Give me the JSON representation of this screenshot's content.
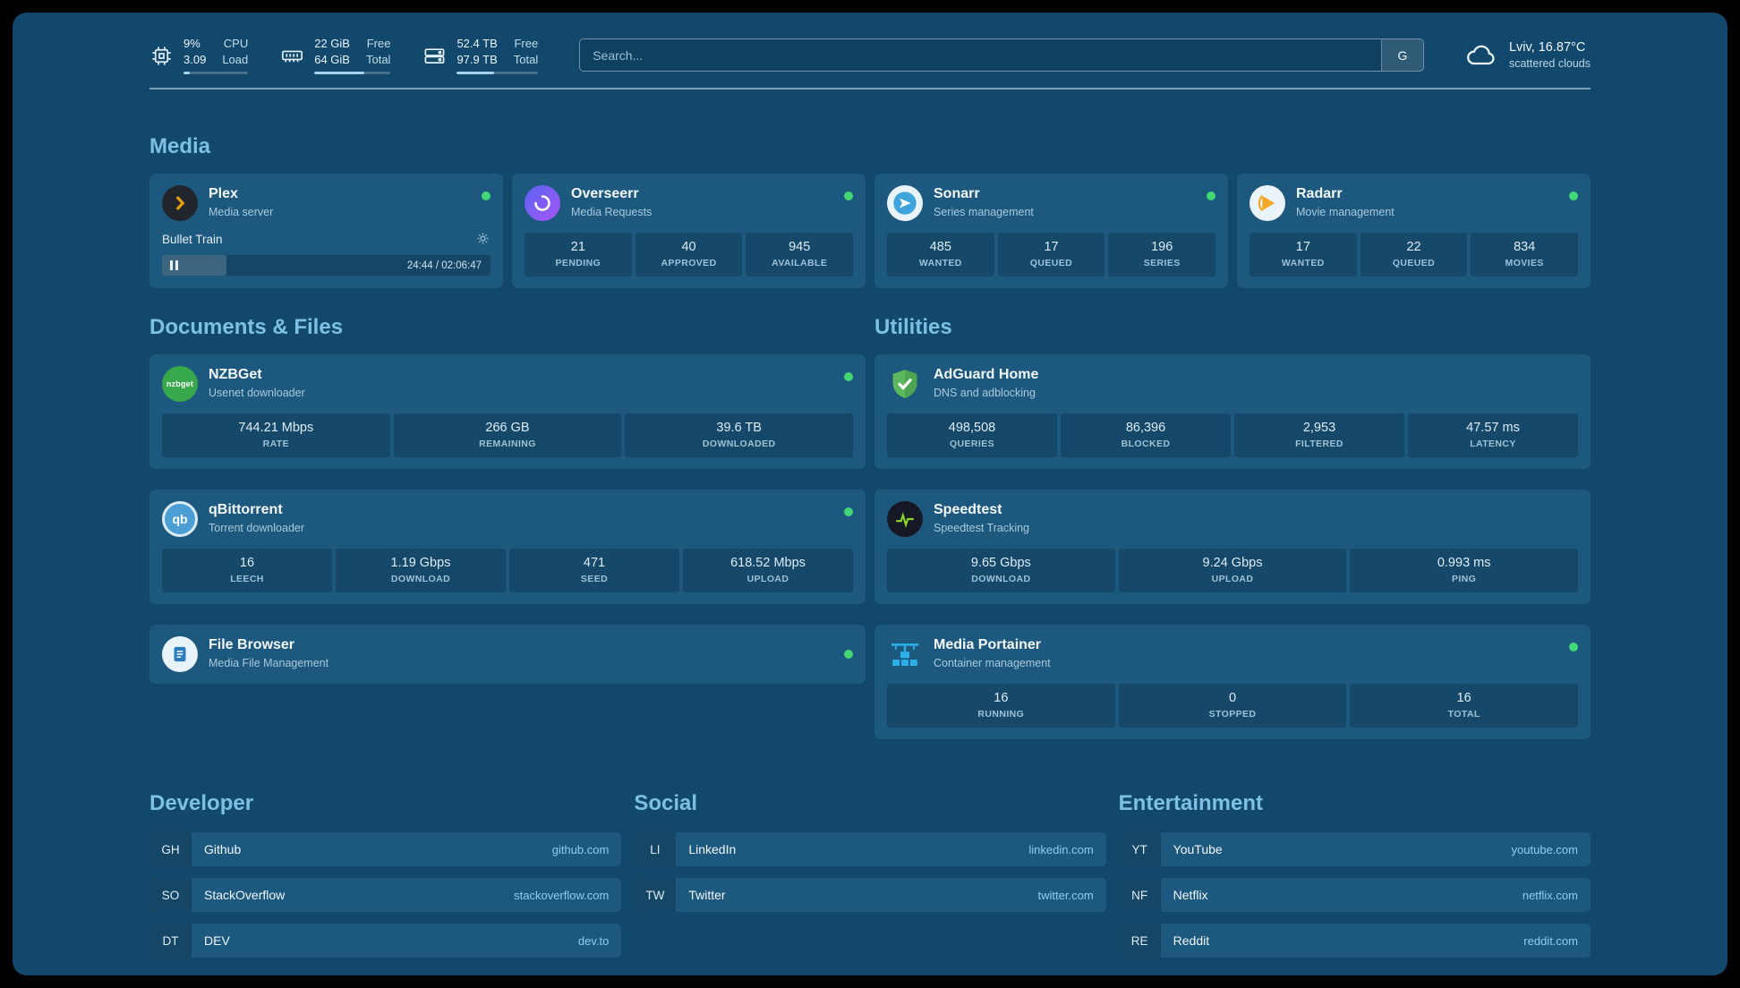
{
  "colors": {
    "page_bg": "#11486b",
    "card_bg": "#1d587e",
    "accent_text": "#7cc1e4",
    "status_online": "#43d675",
    "link_text": "#8ecdef"
  },
  "header": {
    "stats": [
      {
        "name": "cpu",
        "line1": "9%",
        "line2": "3.09",
        "label1": "CPU",
        "label2": "Load",
        "progress": 9
      },
      {
        "name": "memory",
        "line1": "22 GiB",
        "line2": "64 GiB",
        "label1": "Free",
        "label2": "Total",
        "progress": 66
      },
      {
        "name": "disk",
        "line1": "52.4 TB",
        "line2": "97.9 TB",
        "label1": "Free",
        "label2": "Total",
        "progress": 46
      }
    ],
    "search": {
      "placeholder": "Search...",
      "provider_label": "G"
    },
    "weather": {
      "location": "Lviv, 16.87°C",
      "condition": "scattered clouds"
    }
  },
  "sections": {
    "media": {
      "title": "Media"
    },
    "documents": {
      "title": "Documents & Files"
    },
    "utilities": {
      "title": "Utilities"
    }
  },
  "services": {
    "plex": {
      "name": "Plex",
      "desc": "Media server",
      "now_playing": "Bullet Train",
      "time": "24:44 / 02:06:47",
      "progress": 19.5
    },
    "overseerr": {
      "name": "Overseerr",
      "desc": "Media Requests",
      "stats": [
        {
          "value": "21",
          "label": "PENDING"
        },
        {
          "value": "40",
          "label": "APPROVED"
        },
        {
          "value": "945",
          "label": "AVAILABLE"
        }
      ]
    },
    "sonarr": {
      "name": "Sonarr",
      "desc": "Series management",
      "stats": [
        {
          "value": "485",
          "label": "WANTED"
        },
        {
          "value": "17",
          "label": "QUEUED"
        },
        {
          "value": "196",
          "label": "SERIES"
        }
      ]
    },
    "radarr": {
      "name": "Radarr",
      "desc": "Movie management",
      "stats": [
        {
          "value": "17",
          "label": "WANTED"
        },
        {
          "value": "22",
          "label": "QUEUED"
        },
        {
          "value": "834",
          "label": "MOVIES"
        }
      ]
    },
    "nzbget": {
      "name": "NZBGet",
      "desc": "Usenet downloader",
      "stats": [
        {
          "value": "744.21 Mbps",
          "label": "RATE"
        },
        {
          "value": "266 GB",
          "label": "REMAINING"
        },
        {
          "value": "39.6 TB",
          "label": "DOWNLOADED"
        }
      ]
    },
    "qbittorrent": {
      "name": "qBittorrent",
      "desc": "Torrent downloader",
      "stats": [
        {
          "value": "16",
          "label": "LEECH"
        },
        {
          "value": "1.19 Gbps",
          "label": "DOWNLOAD"
        },
        {
          "value": "471",
          "label": "SEED"
        },
        {
          "value": "618.52 Mbps",
          "label": "UPLOAD"
        }
      ]
    },
    "filebrowser": {
      "name": "File Browser",
      "desc": "Media File Management"
    },
    "adguard": {
      "name": "AdGuard Home",
      "desc": "DNS and adblocking",
      "stats": [
        {
          "value": "498,508",
          "label": "QUERIES"
        },
        {
          "value": "86,396",
          "label": "BLOCKED"
        },
        {
          "value": "2,953",
          "label": "FILTERED"
        },
        {
          "value": "47.57 ms",
          "label": "LATENCY"
        }
      ]
    },
    "speedtest": {
      "name": "Speedtest",
      "desc": "Speedtest Tracking",
      "stats": [
        {
          "value": "9.65 Gbps",
          "label": "DOWNLOAD"
        },
        {
          "value": "9.24 Gbps",
          "label": "UPLOAD"
        },
        {
          "value": "0.993 ms",
          "label": "PING"
        }
      ]
    },
    "portainer": {
      "name": "Media Portainer",
      "desc": "Container management",
      "stats": [
        {
          "value": "16",
          "label": "RUNNING"
        },
        {
          "value": "0",
          "label": "STOPPED"
        },
        {
          "value": "16",
          "label": "TOTAL"
        }
      ]
    }
  },
  "bookmarks": [
    {
      "title": "Developer",
      "items": [
        {
          "abbr": "GH",
          "name": "Github",
          "url": "github.com"
        },
        {
          "abbr": "SO",
          "name": "StackOverflow",
          "url": "stackoverflow.com"
        },
        {
          "abbr": "DT",
          "name": "DEV",
          "url": "dev.to"
        }
      ]
    },
    {
      "title": "Social",
      "items": [
        {
          "abbr": "LI",
          "name": "LinkedIn",
          "url": "linkedin.com"
        },
        {
          "abbr": "TW",
          "name": "Twitter",
          "url": "twitter.com"
        }
      ]
    },
    {
      "title": "Entertainment",
      "items": [
        {
          "abbr": "YT",
          "name": "YouTube",
          "url": "youtube.com"
        },
        {
          "abbr": "NF",
          "name": "Netflix",
          "url": "netflix.com"
        },
        {
          "abbr": "RE",
          "name": "Reddit",
          "url": "reddit.com"
        }
      ]
    }
  ]
}
